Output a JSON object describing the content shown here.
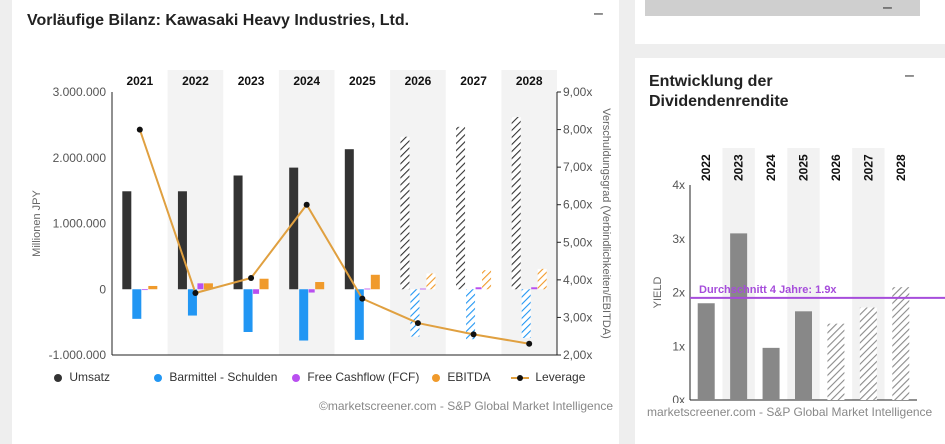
{
  "main": {
    "title": "Vorläufige Bilanz: Kawasaki Heavy Industries, Ltd.",
    "collapse_symbol": "–",
    "credit": "©marketscreener.com - S&P Global Market Intelligence",
    "legend": [
      {
        "label": "Umsatz",
        "color": "#333333",
        "kind": "dot"
      },
      {
        "label": "Barmittel - Schulden",
        "color": "#2196f3",
        "kind": "dot"
      },
      {
        "label": "Free Cashflow (FCF)",
        "color": "#b94ff0",
        "kind": "dot"
      },
      {
        "label": "EBITDA",
        "color": "#f09a2b",
        "kind": "dot"
      },
      {
        "label": "Leverage",
        "color": "#e0a040",
        "kind": "line"
      }
    ]
  },
  "dividend": {
    "title": "Entwicklung der Dividendenrendite",
    "collapse_symbol": "–",
    "credit": "marketscreener.com - S&P Global Market Intelligence"
  },
  "top_right": {
    "collapse_symbol": "–"
  },
  "chart_data": [
    {
      "type": "bar",
      "title": "Vorläufige Bilanz: Kawasaki Heavy Industries, Ltd.",
      "categories": [
        "2021",
        "2022",
        "2023",
        "2024",
        "2025",
        "2026",
        "2027",
        "2028"
      ],
      "estimate_from_index": 5,
      "ylabel": "Millionen JPY",
      "y2label": "Verschuldungsgrad (Verbindlichkeiten/EBITDA)",
      "ylim": [
        -1000000,
        3000000
      ],
      "yticks": [
        -1000000,
        0,
        1000000,
        2000000,
        3000000
      ],
      "ytick_labels": [
        "-1.000.000",
        "0",
        "1.000.000",
        "2.000.000",
        "3.000.000"
      ],
      "y2lim": [
        2.0,
        9.0
      ],
      "y2ticks": [
        2,
        3,
        4,
        5,
        6,
        7,
        8,
        9
      ],
      "y2tick_labels": [
        "2,00x",
        "3,00x",
        "4,00x",
        "5,00x",
        "6,00x",
        "7,00x",
        "8,00x",
        "9,00x"
      ],
      "grid": false,
      "legend_position": "bottom",
      "series": [
        {
          "name": "Umsatz",
          "color": "#333333",
          "values": [
            1490000,
            1490000,
            1730000,
            1850000,
            2130000,
            2320000,
            2470000,
            2620000
          ]
        },
        {
          "name": "Barmittel - Schulden",
          "color": "#2196f3",
          "values": [
            -450000,
            -400000,
            -650000,
            -780000,
            -770000,
            -720000,
            -760000,
            -740000
          ]
        },
        {
          "name": "Free Cashflow (FCF)",
          "color": "#b94ff0",
          "values": [
            0,
            90000,
            -70000,
            -50000,
            10000,
            10000,
            30000,
            30000
          ]
        },
        {
          "name": "EBITDA",
          "color": "#f09a2b",
          "values": [
            50000,
            90000,
            160000,
            110000,
            220000,
            240000,
            290000,
            310000
          ]
        },
        {
          "name": "Leverage",
          "color": "#e0a040",
          "axis": "right",
          "type": "line",
          "values": [
            8.0,
            3.65,
            4.05,
            6.0,
            3.5,
            2.85,
            2.55,
            2.3
          ]
        }
      ]
    },
    {
      "type": "bar",
      "title": "Entwicklung der Dividendenrendite",
      "categories": [
        "2022",
        "2023",
        "2024",
        "2025",
        "2026",
        "2027",
        "2028"
      ],
      "estimate_from_index": 4,
      "ylabel": "YIELD",
      "ylim": [
        0,
        4
      ],
      "yticks": [
        0,
        1,
        2,
        3,
        4
      ],
      "ytick_labels": [
        "0x",
        "1x",
        "2x",
        "3x",
        "4x"
      ],
      "grid": false,
      "series": [
        {
          "name": "YIELD",
          "color": "#888888",
          "values": [
            1.8,
            3.1,
            0.97,
            1.65,
            1.42,
            1.72,
            2.1
          ]
        }
      ],
      "average_line": {
        "value": 1.9,
        "label": "Durchschnitt 4 Jahre: 1.9x",
        "color": "#a64ddb"
      }
    }
  ]
}
